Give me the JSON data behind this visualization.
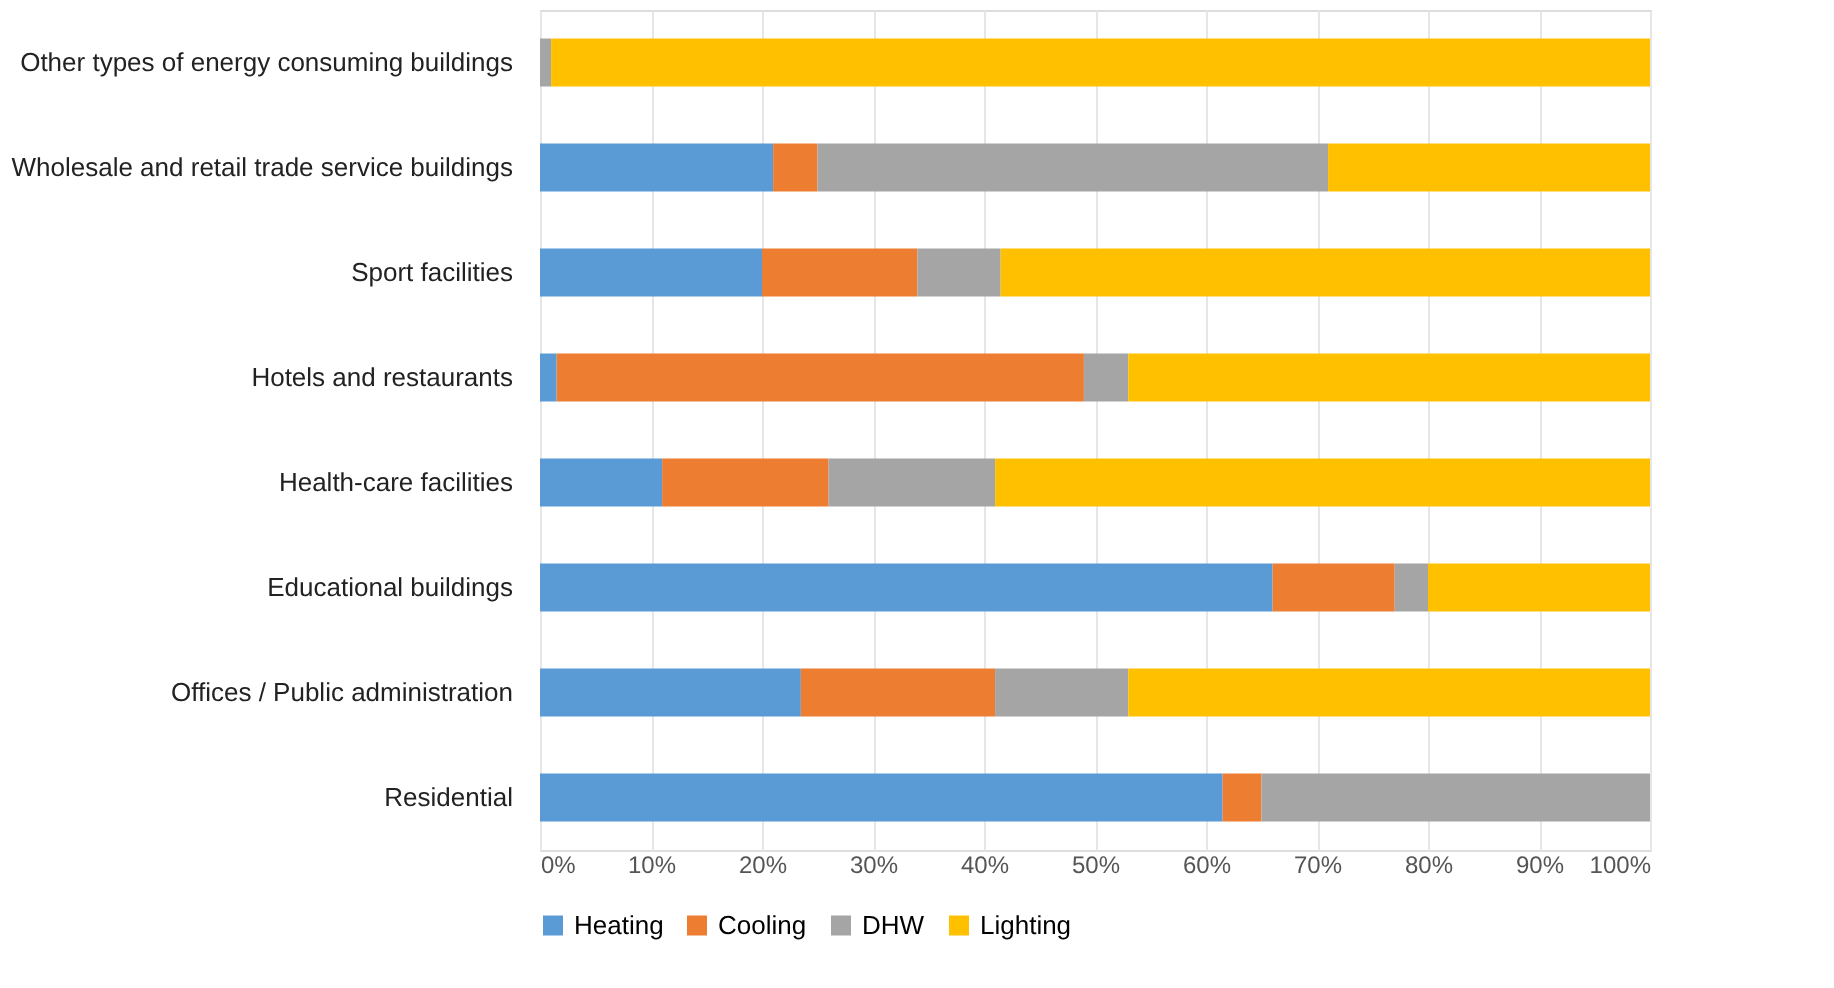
{
  "chart_data": {
    "type": "bar",
    "orientation": "horizontal",
    "stacked": true,
    "categories": [
      "Other types of energy consuming buildings",
      "Wholesale and retail trade service buildings",
      "Sport facilities",
      "Hotels and restaurants",
      "Health-care facilities",
      "Educational buildings",
      "Offices / Public administration",
      "Residential"
    ],
    "series": [
      {
        "name": "Heating",
        "color": "#5b9bd5",
        "values": [
          0,
          21,
          20,
          1.5,
          11,
          66,
          23.5,
          61.5
        ]
      },
      {
        "name": "Cooling",
        "color": "#ed7d31",
        "values": [
          0,
          4,
          14,
          47.5,
          15,
          11,
          17.5,
          3.5
        ]
      },
      {
        "name": "DHW",
        "color": "#a5a5a5",
        "values": [
          1,
          46,
          7.5,
          4,
          15,
          3,
          12,
          35
        ]
      },
      {
        "name": "Lighting",
        "color": "#ffc000",
        "values": [
          99,
          29,
          58.5,
          47,
          59,
          20,
          47,
          0
        ]
      }
    ],
    "xlim": [
      0,
      100
    ],
    "xticks": [
      {
        "value": 0,
        "label": "0%"
      },
      {
        "value": 10,
        "label": "10%"
      },
      {
        "value": 20,
        "label": "20%"
      },
      {
        "value": 30,
        "label": "30%"
      },
      {
        "value": 40,
        "label": "40%"
      },
      {
        "value": 50,
        "label": "50%"
      },
      {
        "value": 60,
        "label": "60%"
      },
      {
        "value": 70,
        "label": "70%"
      },
      {
        "value": 80,
        "label": "80%"
      },
      {
        "value": 90,
        "label": "90%"
      },
      {
        "value": 100,
        "label": "100%"
      }
    ],
    "grid": "x",
    "legend": "bottom"
  }
}
